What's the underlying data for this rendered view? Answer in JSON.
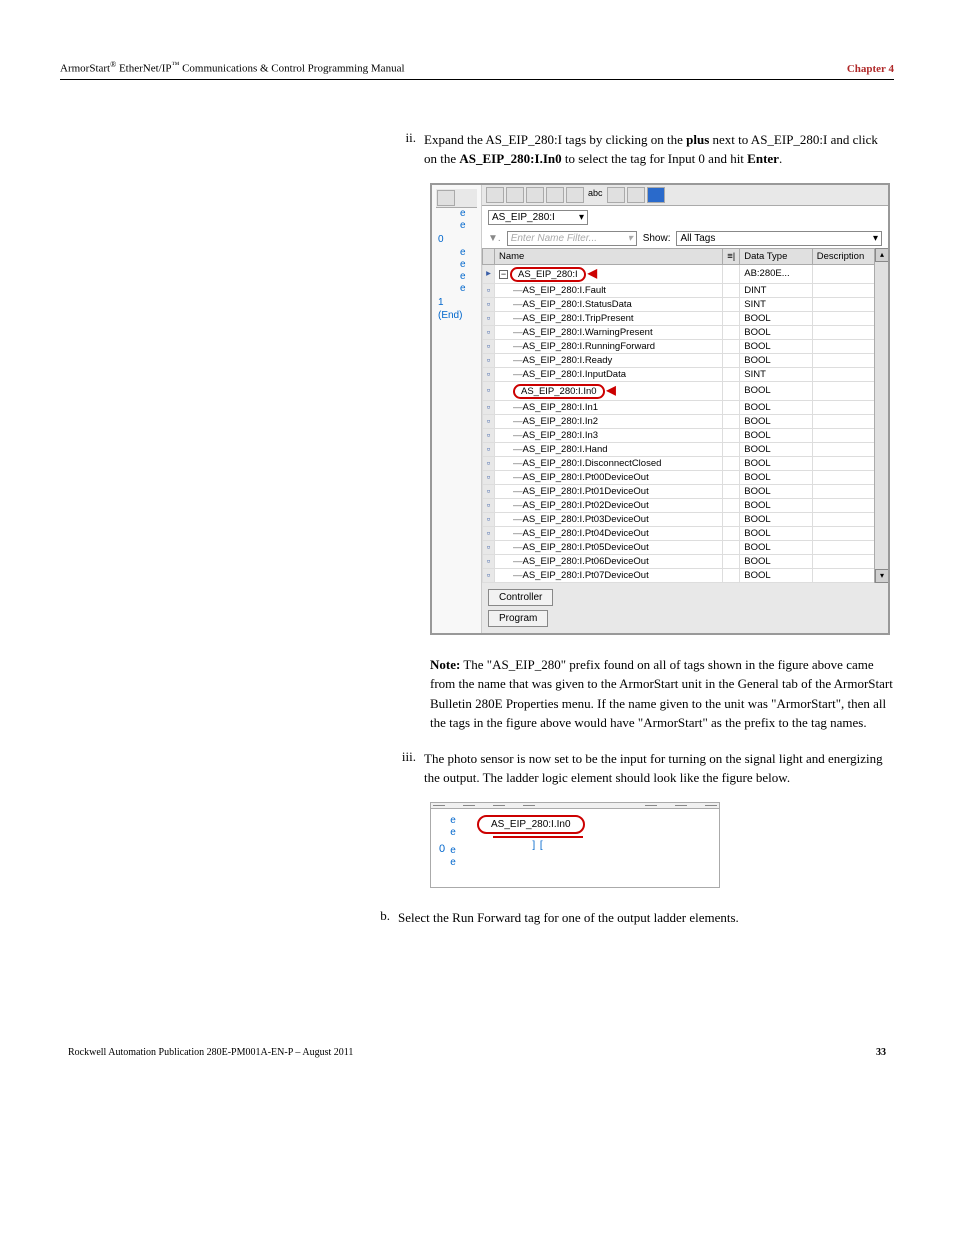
{
  "header": {
    "title_prefix": "ArmorStart",
    "sup1": "®",
    "title_mid": " EtherNet/IP",
    "sup2": "™",
    "title_suffix": " Communications & Control Programming Manual",
    "chapter": "Chapter 4"
  },
  "step_ii": {
    "num": "ii.",
    "text_a": "Expand the AS_EIP_280:I tags by clicking on the ",
    "bold_a": "plus",
    "text_b": " next to AS_EIP_280:I and click on the ",
    "bold_b": "AS_EIP_280:I.In0",
    "text_c": " to select the tag for Input 0 and hit ",
    "bold_c": "Enter",
    "text_d": "."
  },
  "fig1": {
    "left_rungs": [
      "e",
      "e",
      "0",
      "e",
      "e",
      "e",
      "e",
      " ",
      "1",
      " ",
      "(End)"
    ],
    "scope_value": "AS_EIP_280:I",
    "filter_placeholder": "Enter Name Filter...",
    "show_label": "Show:",
    "show_value": "All Tags",
    "columns": [
      "",
      "Name",
      "",
      "Data Type",
      "Description"
    ],
    "root": {
      "name": "AS_EIP_280:I",
      "type": "AB:280E..."
    },
    "tags": [
      {
        "name": "AS_EIP_280:I.Fault",
        "type": "DINT"
      },
      {
        "name": "AS_EIP_280:I.StatusData",
        "type": "SINT"
      },
      {
        "name": "AS_EIP_280:I.TripPresent",
        "type": "BOOL"
      },
      {
        "name": "AS_EIP_280:I.WarningPresent",
        "type": "BOOL"
      },
      {
        "name": "AS_EIP_280:I.RunningForward",
        "type": "BOOL"
      },
      {
        "name": "AS_EIP_280:I.Ready",
        "type": "BOOL"
      },
      {
        "name": "AS_EIP_280:I.InputData",
        "type": "SINT"
      },
      {
        "name": "AS_EIP_280:I.In0",
        "type": "BOOL",
        "highlight": true
      },
      {
        "name": "AS_EIP_280:I.In1",
        "type": "BOOL"
      },
      {
        "name": "AS_EIP_280:I.In2",
        "type": "BOOL"
      },
      {
        "name": "AS_EIP_280:I.In3",
        "type": "BOOL"
      },
      {
        "name": "AS_EIP_280:I.Hand",
        "type": "BOOL"
      },
      {
        "name": "AS_EIP_280:I.DisconnectClosed",
        "type": "BOOL"
      },
      {
        "name": "AS_EIP_280:I.Pt00DeviceOut",
        "type": "BOOL"
      },
      {
        "name": "AS_EIP_280:I.Pt01DeviceOut",
        "type": "BOOL"
      },
      {
        "name": "AS_EIP_280:I.Pt02DeviceOut",
        "type": "BOOL"
      },
      {
        "name": "AS_EIP_280:I.Pt03DeviceOut",
        "type": "BOOL"
      },
      {
        "name": "AS_EIP_280:I.Pt04DeviceOut",
        "type": "BOOL"
      },
      {
        "name": "AS_EIP_280:I.Pt05DeviceOut",
        "type": "BOOL"
      },
      {
        "name": "AS_EIP_280:I.Pt06DeviceOut",
        "type": "BOOL"
      },
      {
        "name": "AS_EIP_280:I.Pt07DeviceOut",
        "type": "BOOL"
      }
    ],
    "btn_controller": "Controller",
    "btn_program": "Program"
  },
  "note": {
    "label": "Note:",
    "text": " The \"AS_EIP_280\" prefix found on all of tags shown in the figure above came from the name that was given to the ArmorStart unit in the General tab of the ArmorStart Bulletin 280E Properties menu. If the name given to the unit was \"ArmorStart\", then all the tags in the figure above would have \"ArmorStart\" as the prefix to the tag names."
  },
  "step_iii": {
    "num": "iii.",
    "text": "The photo sensor is now set to be the input for turning on the signal light and energizing the output. The ladder logic element should look like the figure below."
  },
  "fig2": {
    "rung_e": [
      "e",
      "e",
      "e",
      "e"
    ],
    "rung_0": "0",
    "tag_label": "AS_EIP_280:I.In0",
    "contact": "] [",
    "underline_color": "#cc0000"
  },
  "step_b": {
    "num": "b.",
    "text": "Select the Run Forward tag for one of the output ladder elements."
  },
  "footer": {
    "pub": "Rockwell Automation Publication 280E-PM001A-EN-P – August 2011",
    "page": "33"
  }
}
